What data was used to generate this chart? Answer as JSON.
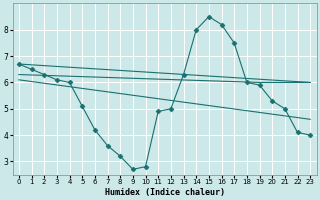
{
  "background_color": "#cce8e8",
  "grid_color": "#ffffff",
  "line_color": "#1a7070",
  "marker_color": "#1a7070",
  "xlabel": "Humidex (Indice chaleur)",
  "xlim": [
    -0.5,
    23.5
  ],
  "ylim": [
    2.5,
    9.0
  ],
  "yticks": [
    3,
    4,
    5,
    6,
    7,
    8
  ],
  "xtick_labels": [
    "0",
    "1",
    "2",
    "3",
    "4",
    "5",
    "6",
    "7",
    "8",
    "9",
    "10",
    "11",
    "12",
    "13",
    "14",
    "15",
    "16",
    "17",
    "18",
    "19",
    "20",
    "21",
    "22",
    "23"
  ],
  "xticks": [
    0,
    1,
    2,
    3,
    4,
    5,
    6,
    7,
    8,
    9,
    10,
    11,
    12,
    13,
    14,
    15,
    16,
    17,
    18,
    19,
    20,
    21,
    22,
    23
  ],
  "zigzag_x": [
    0,
    1,
    2,
    3,
    4,
    5,
    6,
    7,
    8,
    9,
    10,
    11,
    12,
    13,
    14,
    15,
    16,
    17,
    18,
    19,
    20,
    21,
    22,
    23
  ],
  "zigzag_y": [
    6.7,
    6.5,
    6.3,
    6.1,
    6.0,
    5.1,
    4.2,
    3.6,
    3.2,
    2.7,
    2.8,
    4.9,
    5.0,
    6.3,
    8.0,
    8.5,
    8.2,
    7.5,
    6.0,
    5.9,
    5.3,
    5.0,
    4.1,
    4.0
  ],
  "line1_x": [
    0,
    23
  ],
  "line1_y": [
    6.7,
    6.0
  ],
  "line2_x": [
    0,
    19,
    23
  ],
  "line2_y": [
    6.3,
    6.0,
    6.0
  ],
  "line3_x": [
    0,
    23
  ],
  "line3_y": [
    6.1,
    4.6
  ]
}
